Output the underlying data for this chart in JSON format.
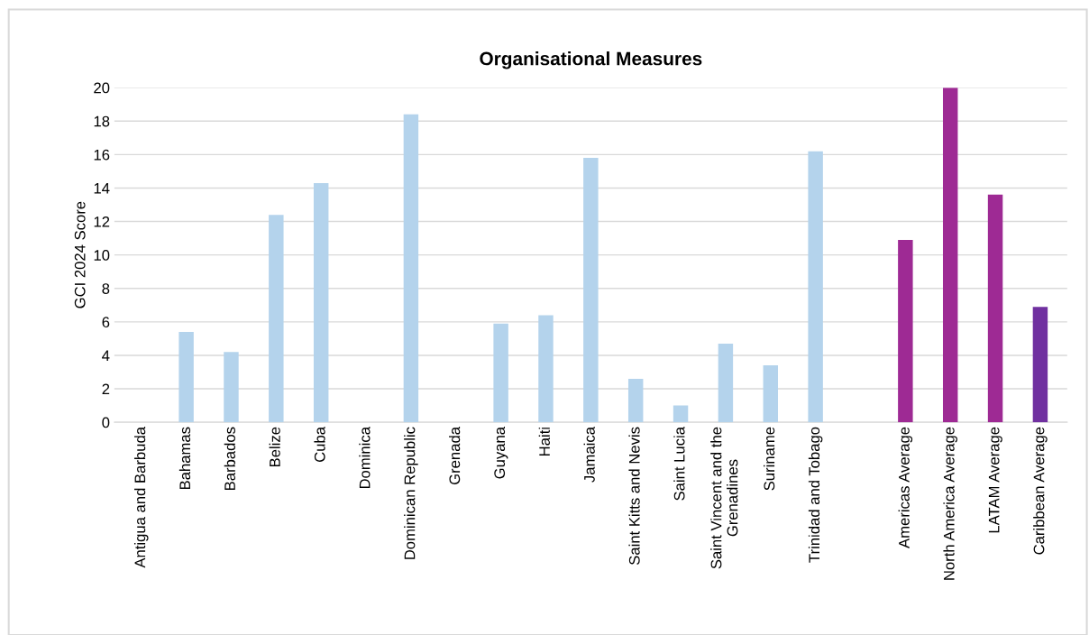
{
  "chart_data": {
    "type": "bar",
    "title": "Organisational Measures",
    "ylabel": "GCI 2024 Score",
    "categories": [
      "Antigua and Barbuda",
      "Bahamas",
      "Barbados",
      "Belize",
      "Cuba",
      "Dominica",
      "Dominican Republic",
      "Grenada",
      "Guyana",
      "Haiti",
      "Jamaica",
      "Saint Kitts and Nevis",
      "Saint Lucia",
      "Saint Vincent and the Grenadines",
      "Suriname",
      "Trinidad and Tobago",
      null,
      "Americas Average",
      "North America Average",
      "LATAM Average",
      "Caribbean Average"
    ],
    "values": [
      0,
      5.4,
      4.2,
      12.4,
      14.3,
      0,
      18.4,
      0,
      5.9,
      6.4,
      15.8,
      2.6,
      1.0,
      4.7,
      3.4,
      16.2,
      null,
      10.9,
      20,
      13.6,
      6.9
    ],
    "colors": [
      "#b4d3ec",
      "#b4d3ec",
      "#b4d3ec",
      "#b4d3ec",
      "#b4d3ec",
      "#b4d3ec",
      "#b4d3ec",
      "#b4d3ec",
      "#b4d3ec",
      "#b4d3ec",
      "#b4d3ec",
      "#b4d3ec",
      "#b4d3ec",
      "#b4d3ec",
      "#b4d3ec",
      "#b4d3ec",
      "#b4d3ec",
      "#9e2a94",
      "#9e2a94",
      "#9e2a94",
      "#7030a0"
    ],
    "ylim": [
      0,
      20
    ],
    "yticks": [
      0,
      2,
      4,
      6,
      8,
      10,
      12,
      14,
      16,
      18,
      20
    ],
    "grid": "y",
    "legend": false
  }
}
